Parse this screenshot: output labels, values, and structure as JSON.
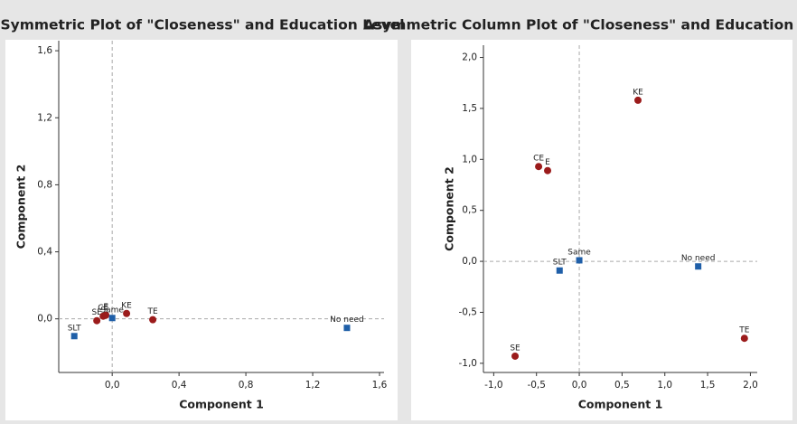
{
  "chart_data": [
    {
      "type": "scatter",
      "title": "Symmetric Plot of \"Closeness\" and Education Level",
      "x_label": "Component 1",
      "y_label": "Component 2",
      "xlim": [
        -0.32,
        1.627
      ],
      "ylim": [
        -0.32,
        1.66
      ],
      "xticks": [
        {
          "value": 0,
          "label": "0,0"
        },
        {
          "value": 0.4,
          "label": "0,4"
        },
        {
          "value": 0.8,
          "label": "0,8"
        },
        {
          "value": 1.2,
          "label": "1,2"
        },
        {
          "value": 1.6,
          "label": "1,6"
        }
      ],
      "yticks": [
        {
          "value": 0,
          "label": "0,0"
        },
        {
          "value": 0.4,
          "label": "0,4"
        },
        {
          "value": 0.8,
          "label": "0,8"
        },
        {
          "value": 1.2,
          "label": "1,2"
        },
        {
          "value": 1.6,
          "label": "1,6"
        }
      ],
      "reference_lines": {
        "x": 0,
        "y": 0
      },
      "series": [
        {
          "color": "#9b1b1b",
          "marker": "circle",
          "labels": [
            "SE",
            "CE",
            "E",
            "KE",
            "TE"
          ],
          "x": [
            -0.092,
            -0.054,
            -0.038,
            0.086,
            0.243
          ],
          "values": [
            -0.011,
            0.016,
            0.022,
            0.032,
            -0.005
          ]
        },
        {
          "color": "#1f5fa8",
          "marker": "square",
          "labels": [
            "SLT",
            "Same",
            "No need"
          ],
          "x": [
            -0.227,
            0.0,
            1.405
          ],
          "values": [
            -0.103,
            0.005,
            -0.054
          ]
        }
      ]
    },
    {
      "type": "scatter",
      "title": "Asymmetric Column Plot of \"Closeness\" and Education Level",
      "x_label": "Component 1",
      "y_label": "Component 2",
      "xlim": [
        -1.12,
        2.08
      ],
      "ylim": [
        -1.09,
        2.12
      ],
      "xticks": [
        {
          "value": -1,
          "label": "-1,0"
        },
        {
          "value": -0.5,
          "label": "-0,5"
        },
        {
          "value": 0,
          "label": "0,0"
        },
        {
          "value": 0.5,
          "label": "0,5"
        },
        {
          "value": 1,
          "label": "1,0"
        },
        {
          "value": 1.5,
          "label": "1,5"
        },
        {
          "value": 2,
          "label": "2,0"
        }
      ],
      "yticks": [
        {
          "value": -1,
          "label": "-1,0"
        },
        {
          "value": -0.5,
          "label": "-0,5"
        },
        {
          "value": 0,
          "label": "0,0"
        },
        {
          "value": 0.5,
          "label": "0,5"
        },
        {
          "value": 1,
          "label": "1,0"
        },
        {
          "value": 1.5,
          "label": "1,5"
        },
        {
          "value": 2,
          "label": "2,0"
        }
      ],
      "reference_lines": {
        "x": 0,
        "y": 0
      },
      "series": [
        {
          "color": "#9b1b1b",
          "marker": "circle",
          "labels": [
            "SE",
            "CE",
            "E",
            "KE",
            "TE"
          ],
          "x": [
            -0.75,
            -0.475,
            -0.37,
            0.686,
            1.93
          ],
          "values": [
            -0.93,
            0.93,
            0.89,
            1.58,
            -0.755
          ]
        },
        {
          "color": "#1f5fa8",
          "marker": "square",
          "labels": [
            "SLT",
            "Same",
            "No need"
          ],
          "x": [
            -0.23,
            0.0,
            1.39
          ],
          "values": [
            -0.09,
            0.01,
            -0.05
          ]
        }
      ]
    }
  ]
}
